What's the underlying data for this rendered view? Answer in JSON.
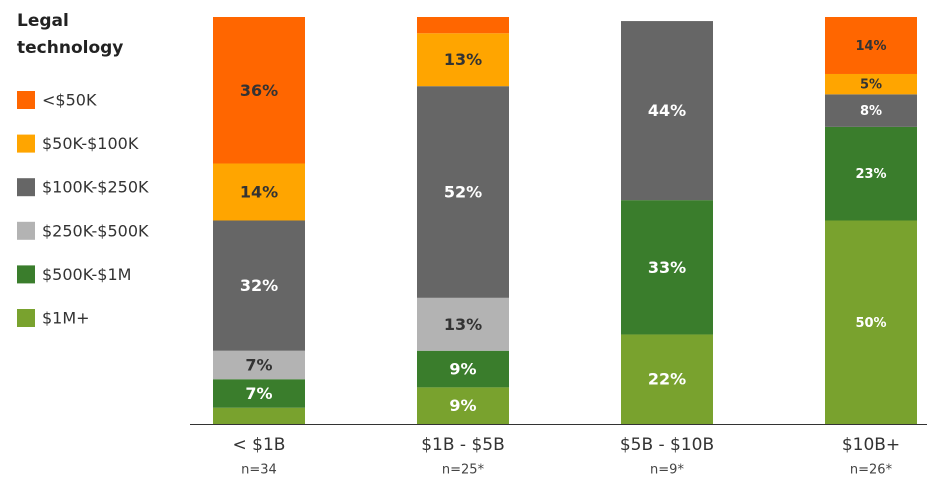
{
  "chart_data": {
    "type": "stacked_bar",
    "legend_title": "Legal technology",
    "categories": [
      "< $1B",
      "$1B - $5B",
      "$5B - $10B",
      "$10B+"
    ],
    "sample_sizes": [
      "n=34",
      "n=25*",
      "n=9*",
      "n=26*"
    ],
    "ylim": [
      0,
      100
    ],
    "series": [
      {
        "name": "<$50K",
        "color": "#ff6600",
        "values": [
          36,
          4,
          0,
          14
        ],
        "value_labels": [
          "36%",
          null,
          null,
          "14%"
        ]
      },
      {
        "name": "$50K-$100K",
        "color": "#ffa500",
        "values": [
          14,
          13,
          0,
          5
        ],
        "value_labels": [
          "14%",
          "13%",
          null,
          "5%"
        ]
      },
      {
        "name": "$100K-$250K",
        "color": "#666666",
        "values": [
          32,
          52,
          44,
          8
        ],
        "value_labels": [
          "32%",
          "52%",
          "44%",
          "8%"
        ]
      },
      {
        "name": "$250K-$500K",
        "color": "#b3b3b3",
        "values": [
          7,
          13,
          0,
          0
        ],
        "value_labels": [
          "7%",
          "13%",
          null,
          null
        ]
      },
      {
        "name": "$500K-$1M",
        "color": "#3a7d2c",
        "values": [
          7,
          9,
          33,
          23
        ],
        "value_labels": [
          "7%",
          "9%",
          "33%",
          "23%"
        ]
      },
      {
        "name": "$1M+",
        "color": "#79a22e",
        "values": [
          4,
          9,
          22,
          50
        ],
        "value_labels": [
          null,
          "9%",
          "22%",
          "50%"
        ]
      }
    ]
  }
}
